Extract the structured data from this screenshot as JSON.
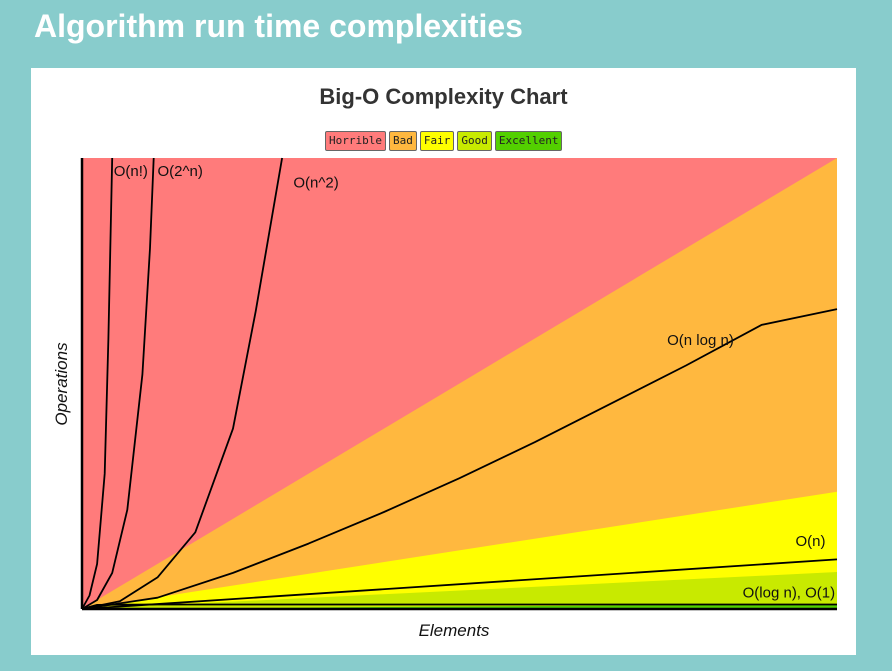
{
  "slide": {
    "title": "Algorithm run time complexities"
  },
  "chart_data": {
    "type": "area",
    "title": "Big-O Complexity Chart",
    "xlabel": "Elements",
    "ylabel": "Operations",
    "grid": false,
    "legend_placement": "top-center",
    "legend": [
      {
        "label": "Horrible",
        "color": "#ff7b7b"
      },
      {
        "label": "Bad",
        "color": "#ffb83f"
      },
      {
        "label": "Fair",
        "color": "#ffff00"
      },
      {
        "label": "Good",
        "color": "#c8ea00"
      },
      {
        "label": "Excellent",
        "color": "#53d000"
      }
    ],
    "xlim": [
      0,
      100
    ],
    "ylim": [
      0,
      100
    ],
    "regions": [
      {
        "name": "Horrible",
        "color": "#ff7b7b",
        "upper_slope": null
      },
      {
        "name": "Bad",
        "color": "#ffb83f",
        "upper_slope": 1.0
      },
      {
        "name": "Fair",
        "color": "#ffff00",
        "upper_slope": 0.26
      },
      {
        "name": "Good",
        "color": "#c8ea00",
        "upper_slope": 0.082
      },
      {
        "name": "Excellent",
        "color": "#53d000",
        "upper_slope": 0.011
      }
    ],
    "series": [
      {
        "name": "O(n!)",
        "x": [
          0,
          1,
          2,
          3,
          3.5,
          4
        ],
        "y": [
          0,
          3,
          10,
          30,
          60,
          100
        ]
      },
      {
        "name": "O(2^n)",
        "x": [
          0,
          2,
          4,
          6,
          8,
          9,
          9.5
        ],
        "y": [
          0,
          2,
          8,
          22,
          52,
          80,
          100
        ]
      },
      {
        "name": "O(n^2)",
        "x": [
          0,
          5,
          10,
          15,
          20,
          23,
          26.5
        ],
        "y": [
          0,
          1.7,
          7,
          17,
          40,
          66,
          100
        ]
      },
      {
        "name": "O(n log n)",
        "x": [
          0,
          10,
          20,
          30,
          40,
          50,
          60,
          70,
          80,
          90,
          100
        ],
        "y": [
          0,
          2.5,
          8,
          14.5,
          21.5,
          29,
          37,
          45.5,
          54,
          63,
          66.5
        ]
      },
      {
        "name": "O(n)",
        "x": [
          0,
          100
        ],
        "y": [
          0,
          11
        ]
      },
      {
        "name": "O(log n), O(1)",
        "x": [
          0,
          2,
          10,
          100
        ],
        "y": [
          0,
          0.9,
          1.0,
          1.0
        ]
      }
    ],
    "annotations": [
      {
        "text": "O(n!)",
        "x": 4.2,
        "y": 96
      },
      {
        "text": "O(2^n)",
        "x": 10.0,
        "y": 96
      },
      {
        "text": "O(n^2)",
        "x": 28.0,
        "y": 93.5
      },
      {
        "text": "O(n log n)",
        "x": 77.5,
        "y": 58.5
      },
      {
        "text": "O(n)",
        "x": 94.5,
        "y": 14
      },
      {
        "text": "O(log n), O(1)",
        "x": 87.5,
        "y": 2.5
      }
    ]
  }
}
